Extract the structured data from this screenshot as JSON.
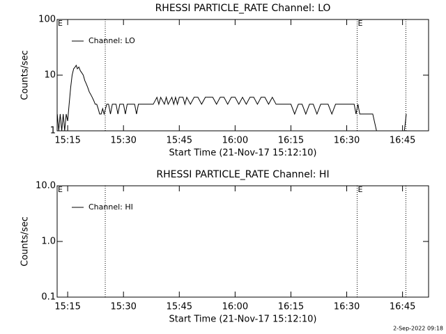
{
  "chart_data": [
    {
      "type": "line",
      "title": "RHESSI PARTICLE_RATE Channel: LO",
      "xlabel": "Start Time (21-Nov-17 15:12:10)",
      "ylabel": "Counts/sec",
      "log_y": true,
      "legend": "top-left",
      "xlim": [
        12.17,
        112
      ],
      "ylim": [
        1,
        100
      ],
      "xticks": [
        {
          "value": 15,
          "label": "15:15"
        },
        {
          "value": 30,
          "label": "15:30"
        },
        {
          "value": 45,
          "label": "15:45"
        },
        {
          "value": 60,
          "label": "16:00"
        },
        {
          "value": 75,
          "label": "16:15"
        },
        {
          "value": 90,
          "label": "16:30"
        },
        {
          "value": 105,
          "label": "16:45"
        }
      ],
      "yticks": [
        1,
        10,
        100
      ],
      "vlines": [
        25.1,
        92.8,
        105.9
      ],
      "annotations": [
        {
          "text": "E",
          "x": 12.17
        },
        {
          "text": "E",
          "x": 92.8
        }
      ],
      "x": [
        12.2,
        12.6,
        13.0,
        13.4,
        13.8,
        14.2,
        14.6,
        15.0,
        15.4,
        15.8,
        16.2,
        16.6,
        17.0,
        17.3,
        17.6,
        18.0,
        18.4,
        18.8,
        19.2,
        19.6,
        20.0,
        20.4,
        20.8,
        21.2,
        21.6,
        22.0,
        22.4,
        22.8,
        23.2,
        23.6,
        24.0,
        24.4,
        24.8,
        25.5,
        26,
        26.5,
        27,
        28,
        28.5,
        29,
        30,
        30.5,
        31,
        32,
        33,
        33.5,
        34,
        35,
        36,
        37,
        38,
        39,
        39.5,
        40,
        41,
        41.5,
        42,
        43,
        43.5,
        44,
        44.5,
        45,
        46,
        46.5,
        47,
        48,
        49,
        50,
        51,
        52,
        53,
        54,
        55,
        56,
        57,
        58,
        59,
        60,
        61,
        62,
        63,
        64,
        65,
        66,
        67,
        68,
        69,
        70,
        71,
        72,
        73,
        74,
        75,
        76,
        77,
        78,
        79,
        80,
        81,
        82,
        83,
        84,
        85,
        86,
        87,
        88,
        89,
        90,
        91,
        92,
        92.5,
        93,
        93.5,
        94,
        95,
        96,
        97,
        98,
        99,
        102,
        105.5,
        106
      ],
      "series": [
        {
          "name": "Channel: LO",
          "color": "#000000",
          "values": [
            2,
            1,
            2,
            1,
            2,
            1,
            2,
            1.5,
            3,
            6,
            10,
            13,
            14,
            15,
            13,
            14,
            12,
            11,
            10,
            8,
            7,
            6,
            5,
            4.5,
            4,
            3.5,
            3,
            3,
            2.5,
            2,
            2,
            2.5,
            2,
            3,
            3,
            2,
            3,
            3,
            2,
            3,
            3,
            2,
            3,
            3,
            3,
            2,
            3,
            3,
            3,
            3,
            3,
            4,
            3,
            4,
            3,
            4,
            3,
            4,
            3,
            4,
            3,
            4,
            4,
            3,
            4,
            3,
            4,
            4,
            3,
            4,
            4,
            4,
            3,
            4,
            4,
            3,
            4,
            4,
            3,
            4,
            3,
            4,
            4,
            3,
            4,
            4,
            3,
            4,
            3,
            3,
            3,
            3,
            3,
            2,
            3,
            3,
            2,
            3,
            3,
            2,
            3,
            3,
            3,
            2,
            3,
            3,
            3,
            3,
            3,
            3,
            2,
            3,
            2,
            2,
            2,
            2,
            2,
            1,
            1,
            null,
            1,
            2
          ]
        }
      ]
    },
    {
      "type": "line",
      "title": "RHESSI PARTICLE_RATE Channel: HI",
      "xlabel": "Start Time (21-Nov-17 15:12:10)",
      "ylabel": "Counts/sec",
      "log_y": true,
      "legend": "top-left",
      "xlim": [
        12.17,
        112
      ],
      "ylim": [
        0.1,
        10
      ],
      "xticks": [
        {
          "value": 15,
          "label": "15:15"
        },
        {
          "value": 30,
          "label": "15:30"
        },
        {
          "value": 45,
          "label": "15:45"
        },
        {
          "value": 60,
          "label": "16:00"
        },
        {
          "value": 75,
          "label": "16:15"
        },
        {
          "value": 90,
          "label": "16:30"
        },
        {
          "value": 105,
          "label": "16:45"
        }
      ],
      "yticks": [
        {
          "value": 0.1,
          "label": "0.1"
        },
        {
          "value": 1,
          "label": "1.0"
        },
        {
          "value": 10,
          "label": "10.0"
        }
      ],
      "vlines": [
        25.1,
        92.8,
        105.9
      ],
      "annotations": [
        {
          "text": "E",
          "x": 12.17
        },
        {
          "text": "E",
          "x": 92.8
        }
      ],
      "x": [],
      "series": [
        {
          "name": "Channel: HI",
          "color": "#000000",
          "values": []
        }
      ]
    }
  ],
  "footer": "2-Sep-2022 09:18"
}
